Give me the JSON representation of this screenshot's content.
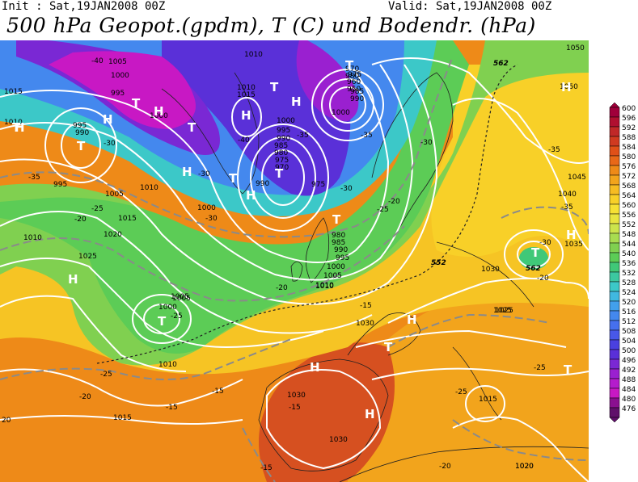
{
  "header": {
    "init_label": "Init : Sat,19JAN2008 00Z",
    "valid_label": "Valid: Sat,19JAN2008 00Z",
    "title": "500 hPa Geopot.(gpdm), T (C) und Bodendr. (hPa)"
  },
  "legend": {
    "levels": [
      "600",
      "596",
      "592",
      "588",
      "584",
      "580",
      "576",
      "572",
      "568",
      "564",
      "560",
      "556",
      "552",
      "548",
      "544",
      "540",
      "536",
      "532",
      "528",
      "524",
      "520",
      "516",
      "512",
      "508",
      "504",
      "500",
      "496",
      "492",
      "488",
      "484",
      "480",
      "476"
    ],
    "colors": [
      "#a0003a",
      "#b01030",
      "#c02828",
      "#d03a20",
      "#e05018",
      "#e86818",
      "#ee8a18",
      "#f2a41c",
      "#f6bc22",
      "#f8d028",
      "#f6e034",
      "#e8e440",
      "#cce44c",
      "#a8dc50",
      "#80d050",
      "#5ccc56",
      "#40c878",
      "#3cc8a0",
      "#3cc8c8",
      "#40b8e0",
      "#42a0ec",
      "#4488ee",
      "#4670ee",
      "#4858e8",
      "#4a40e0",
      "#5a30d8",
      "#7a28d4",
      "#9a20d0",
      "#b41ccc",
      "#c818c4",
      "#8a1090",
      "#60106a"
    ]
  },
  "map": {
    "gpdm_labels": [
      "552",
      "562",
      "562"
    ],
    "pressure_labels": [
      "1010",
      "1005",
      "1000",
      "995",
      "1015",
      "1010",
      "1000",
      "995",
      "990",
      "995",
      "1005",
      "1010",
      "1015",
      "1020",
      "1025",
      "1010",
      "1015",
      "1010",
      "1000",
      "995",
      "990",
      "985",
      "980",
      "975",
      "970",
      "990",
      "1000",
      "975",
      "1010",
      "1005",
      "1000",
      "995",
      "990",
      "985",
      "980",
      "975",
      "970",
      "960",
      "950",
      "980",
      "985",
      "990",
      "1000",
      "1005",
      "1010",
      "1005",
      "1000",
      "1030",
      "1025",
      "1030",
      "1030",
      "1015",
      "1020",
      "1010",
      "1015",
      "1050",
      "1050",
      "1045",
      "1040",
      "1035",
      "1030",
      "1025",
      "1020"
    ],
    "temp_labels": [
      "-40",
      "-35",
      "-30",
      "-35",
      "-30",
      "-25",
      "-20",
      "-40",
      "-35",
      "-30",
      "-30",
      "-25",
      "-20",
      "-25",
      "-20",
      "-15",
      "-15",
      "-25",
      "-20",
      "-15",
      "-15",
      "-15",
      "-20",
      "-25",
      "-25",
      "-30",
      "-35",
      "-30",
      "-35",
      "-20",
      "20"
    ],
    "centers": [
      "H",
      "T",
      "H",
      "T",
      "H",
      "T",
      "H",
      "T",
      "H",
      "T",
      "H",
      "T",
      "T",
      "H",
      "T",
      "H",
      "H",
      "H",
      "T",
      "H",
      "T",
      "T",
      "H",
      "T",
      "T",
      "H"
    ]
  }
}
